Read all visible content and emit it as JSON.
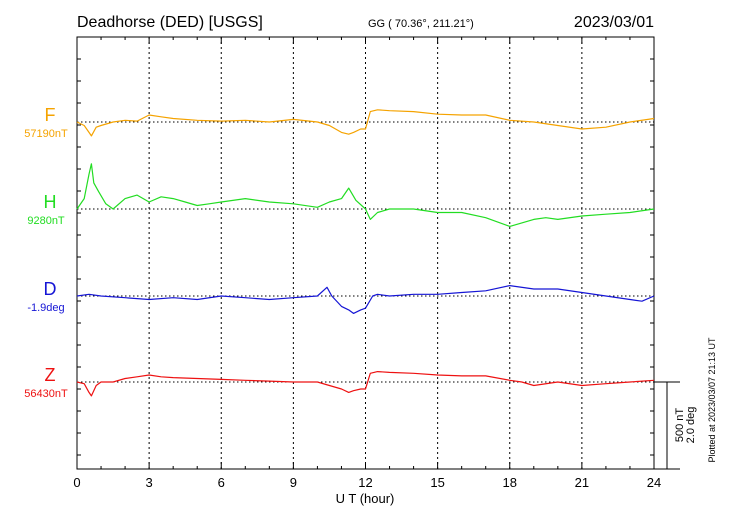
{
  "header": {
    "station": "Deadhorse (DED)  [USGS]",
    "coords": "GG ( 70.36°, 211.21°)",
    "date": "2023/03/01"
  },
  "footer": {
    "plotted": "Plotted at 2023/03/07 21:13 UT"
  },
  "scale_bar": {
    "line1": "500 nT",
    "line2": "2.0 deg"
  },
  "chart_data": {
    "type": "line",
    "title": "Deadhorse (DED)  [USGS]",
    "xlabel": "U T (hour)",
    "ylabel": "",
    "xlim": [
      0,
      24
    ],
    "x_ticks": [
      0,
      3,
      6,
      9,
      12,
      15,
      18,
      21,
      24
    ],
    "grid": true,
    "series": [
      {
        "name": "F",
        "baseline": "57190nT",
        "color": "#f5a300",
        "x": [
          0,
          0.3,
          0.5,
          0.6,
          0.8,
          1,
          1.5,
          2,
          2.5,
          3,
          3.5,
          4,
          5,
          6,
          7,
          8,
          9,
          10,
          10.5,
          11,
          11.3,
          11.5,
          11.8,
          12,
          12.2,
          12.5,
          13,
          14,
          15,
          16,
          17,
          18,
          19,
          20,
          21,
          22,
          23,
          24
        ],
        "values": [
          0,
          -20,
          -60,
          -80,
          -30,
          -20,
          0,
          10,
          5,
          40,
          30,
          20,
          10,
          5,
          10,
          0,
          15,
          0,
          -20,
          -60,
          -70,
          -60,
          -40,
          -40,
          60,
          70,
          65,
          60,
          45,
          40,
          40,
          10,
          0,
          -20,
          -40,
          -30,
          0,
          20
        ]
      },
      {
        "name": "H",
        "baseline": "9280nT",
        "color": "#22dd22",
        "x": [
          0,
          0.3,
          0.5,
          0.6,
          0.7,
          0.9,
          1.2,
          1.5,
          2,
          2.5,
          3,
          3.5,
          4,
          4.5,
          5,
          5.5,
          6,
          7,
          8,
          9,
          10,
          10.5,
          11,
          11.3,
          11.6,
          12,
          12.2,
          12.5,
          13,
          14,
          15,
          16,
          17,
          18,
          18.5,
          19,
          19.5,
          20,
          21,
          22,
          23,
          24
        ],
        "values": [
          0,
          60,
          200,
          260,
          150,
          100,
          30,
          0,
          60,
          80,
          40,
          70,
          60,
          40,
          20,
          30,
          40,
          60,
          40,
          30,
          10,
          40,
          60,
          120,
          50,
          0,
          -60,
          -20,
          0,
          0,
          -20,
          -20,
          -50,
          -100,
          -80,
          -60,
          -50,
          -60,
          -40,
          -30,
          -20,
          0
        ]
      },
      {
        "name": "D",
        "baseline": "-1.9deg",
        "color": "#1515d5",
        "x": [
          0,
          0.5,
          1,
          2,
          3,
          4,
          5,
          6,
          7,
          8,
          9,
          10,
          10.4,
          10.6,
          11,
          11.3,
          11.5,
          11.8,
          12,
          12.3,
          12.5,
          13,
          14,
          15,
          16,
          17,
          18,
          19,
          20,
          21,
          22,
          23,
          23.5,
          24
        ],
        "values": [
          0,
          10,
          0,
          -10,
          -20,
          -10,
          -20,
          0,
          -10,
          -20,
          -10,
          0,
          50,
          0,
          -60,
          -80,
          -100,
          -80,
          -70,
          0,
          10,
          0,
          10,
          10,
          20,
          30,
          60,
          40,
          40,
          20,
          0,
          -20,
          -30,
          0
        ]
      },
      {
        "name": "Z",
        "baseline": "56430nT",
        "color": "#ee1111",
        "x": [
          0,
          0.3,
          0.5,
          0.6,
          0.8,
          1,
          1.5,
          2,
          2.5,
          3,
          3.5,
          4,
          5,
          6,
          7,
          8,
          9,
          10,
          10.5,
          11,
          11.3,
          11.5,
          11.8,
          12,
          12.2,
          12.5,
          13,
          14,
          15,
          16,
          17,
          18,
          18.5,
          19,
          20,
          21,
          22,
          23,
          24
        ],
        "values": [
          0,
          -10,
          -60,
          -80,
          -20,
          0,
          0,
          20,
          30,
          40,
          30,
          25,
          20,
          15,
          10,
          5,
          0,
          0,
          -20,
          -40,
          -60,
          -50,
          -40,
          -40,
          50,
          60,
          55,
          50,
          40,
          35,
          35,
          10,
          0,
          -20,
          0,
          -20,
          -10,
          0,
          10
        ]
      }
    ]
  }
}
